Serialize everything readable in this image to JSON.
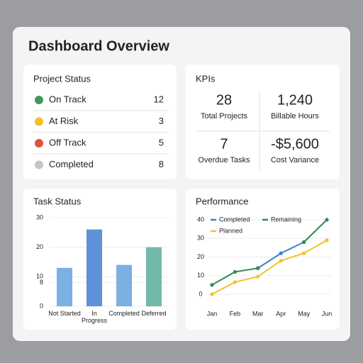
{
  "header": {
    "title": "Dashboard Overview"
  },
  "project_status": {
    "title": "Project Status",
    "items": [
      {
        "label": "On Track",
        "value": 12,
        "color": "#3f9a5e"
      },
      {
        "label": "At Risk",
        "value": 3,
        "color": "#f4c025"
      },
      {
        "label": "Off Track",
        "value": 5,
        "color": "#e0533a"
      },
      {
        "label": "Completed",
        "value": 8,
        "color": "#c4c4c4"
      }
    ]
  },
  "kpis": {
    "title": "KPIs",
    "items": [
      {
        "value": "28",
        "label": "Total Projects"
      },
      {
        "value": "1,240",
        "label": "Billable Hours"
      },
      {
        "value": "7",
        "label": "Overdue Tasks"
      },
      {
        "value": "-$5,600",
        "label": "Cost Variance"
      }
    ]
  },
  "chart_data": [
    {
      "type": "bar",
      "title": "Task Status",
      "categories": [
        "Not Started",
        "In Progress",
        "Completed",
        "Deferred"
      ],
      "values": [
        13,
        26,
        14,
        20
      ],
      "colors": [
        "#7cb0e2",
        "#5d91d8",
        "#7cb0e2",
        "#72b9a9"
      ],
      "ylim": [
        0,
        30
      ],
      "yticks": [
        0,
        8,
        10,
        20,
        30
      ],
      "grid": true
    },
    {
      "type": "line",
      "title": "Performance",
      "categories": [
        "Jan",
        "Feb",
        "Mar",
        "Apr",
        "May",
        "Jun"
      ],
      "series": [
        {
          "name": "Completed",
          "color": "#3b7dd8",
          "values": [
            null,
            null,
            14,
            22,
            28,
            null
          ]
        },
        {
          "name": "Remaining",
          "color": "#2e8b57",
          "values": [
            5,
            12,
            14,
            null,
            28,
            40
          ]
        },
        {
          "name": "Planned",
          "color": "#f5c02a",
          "values": [
            0,
            6.5,
            9.5,
            18,
            22,
            29
          ]
        }
      ],
      "ylim": [
        0,
        40
      ],
      "yticks": [
        0,
        10,
        20,
        30,
        40
      ],
      "grid": true
    }
  ]
}
